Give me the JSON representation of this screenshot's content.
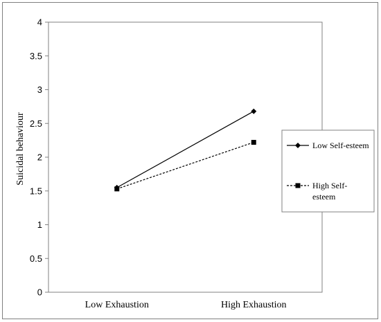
{
  "chart_data": {
    "type": "line",
    "categories": [
      "Low Exhaustion",
      "High Exhaustion"
    ],
    "series": [
      {
        "name": "Low Self-esteem",
        "values": [
          1.55,
          2.68
        ],
        "line_style": "solid",
        "marker": "diamond"
      },
      {
        "name": "High Self-esteem",
        "values": [
          1.53,
          2.22
        ],
        "line_style": "dashed",
        "marker": "square"
      }
    ],
    "ylabel": "Suicidal behaviour",
    "xlabel": "",
    "title": "",
    "ylim": [
      0,
      4
    ],
    "yticks": [
      "0",
      "0.5",
      "1",
      "1.5",
      "2",
      "2.5",
      "3",
      "3.5",
      "4"
    ],
    "grid": false,
    "legend": "right",
    "colors": {
      "line": "#000000",
      "axis": "#808080"
    }
  }
}
